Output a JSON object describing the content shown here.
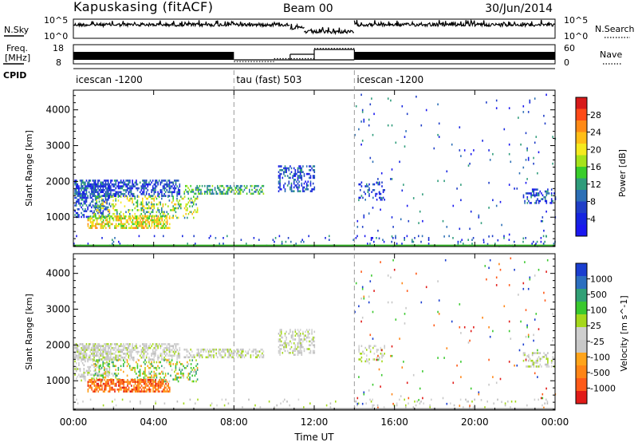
{
  "header": {
    "station": "Kapuskasing (fitACF)",
    "beam": "Beam 00",
    "date": "30/Jun/2014"
  },
  "labels": {
    "nsky": "N.Sky",
    "freq_line1": "Freq.",
    "freq_line2": "[MHz]",
    "cpid": "CPID",
    "nsearch": "N.Search",
    "nave": "Nave"
  },
  "chart_data": [
    {
      "type": "line",
      "name_left": "N.Sky",
      "name_right": "N.Search",
      "yticks_left": [
        "10^5",
        "10^0"
      ],
      "yticks_right": [
        "10^5",
        "10^0"
      ],
      "segments": [
        {
          "x0": 0.0,
          "x1": 10.8,
          "level": "high",
          "style": "noisy"
        },
        {
          "x0": 10.8,
          "x1": 11.5,
          "level": "mid",
          "style": "noisy"
        },
        {
          "x0": 11.5,
          "x1": 14.0,
          "level": "low",
          "style": "noisy"
        },
        {
          "x0": 14.0,
          "x1": 24.0,
          "level": "high",
          "style": "noisy"
        }
      ]
    },
    {
      "type": "line",
      "name_left": "Freq. [MHz]",
      "name_right": "Nave",
      "yticks_left": [
        "18",
        "8"
      ],
      "yticks_right": [
        "60",
        "0"
      ],
      "freq_segments": [
        {
          "x0": 0.0,
          "x1": 8.0,
          "style": "dense"
        },
        {
          "x0": 8.0,
          "x1": 14.0,
          "style": "low"
        },
        {
          "x0": 14.0,
          "x1": 24.0,
          "style": "dense"
        }
      ],
      "nave_segments": [
        {
          "x0": 8.0,
          "x1": 10.0,
          "value": 5
        },
        {
          "x0": 10.0,
          "x1": 12.0,
          "value": 15
        },
        {
          "x0": 12.0,
          "x1": 14.0,
          "value": 50
        }
      ]
    },
    {
      "type": "table",
      "cpid_segments": [
        {
          "x0": 0.0,
          "x1": 8.0,
          "label": "icescan -1200"
        },
        {
          "x0": 8.0,
          "x1": 14.0,
          "label": "tau (fast) 503"
        },
        {
          "x0": 14.0,
          "x1": 24.0,
          "label": "icescan -1200"
        }
      ]
    },
    {
      "type": "heatmap",
      "quantity": "Power",
      "ylabel": "Slant Range [km]",
      "yticks": [
        1000,
        2000,
        3000,
        4000
      ],
      "ylim": [
        180,
        4550
      ],
      "colorbar_label": "Power [dB]",
      "colorbar_ticks": [
        "28",
        "24",
        "20",
        "16",
        "12",
        "8",
        "4"
      ],
      "colorbar_colors": [
        "#d71a1a",
        "#ff4a18",
        "#ff8a16",
        "#ffbe16",
        "#f5ea1e",
        "#a6e31a",
        "#39cd2a",
        "#2f9c7b",
        "#2c6fb6",
        "#1f3ec7",
        "#1524e0",
        "#1a17f0"
      ],
      "blocks": [
        {
          "t0": 0.05,
          "t1": 5.3,
          "r0": 1600,
          "r1": 2050,
          "palette": "power_blue",
          "density": 0.55
        },
        {
          "t0": 0.05,
          "t1": 1.8,
          "r0": 1000,
          "r1": 2000,
          "palette": "power_blue",
          "density": 0.4
        },
        {
          "t0": 1.0,
          "t1": 6.2,
          "r0": 1000,
          "r1": 1600,
          "palette": "power_mix",
          "density": 0.3
        },
        {
          "t0": 0.7,
          "t1": 4.8,
          "r0": 700,
          "r1": 1050,
          "palette": "power_orange",
          "density": 0.6
        },
        {
          "t0": 5.5,
          "t1": 9.5,
          "r0": 1650,
          "r1": 1900,
          "palette": "power_green",
          "density": 0.5
        },
        {
          "t0": 10.2,
          "t1": 12.0,
          "r0": 1750,
          "r1": 2450,
          "palette": "power_blue",
          "density": 0.35
        },
        {
          "t0": 0.0,
          "t1": 24.0,
          "r0": 200,
          "r1": 500,
          "palette": "power_blue",
          "density": 0.05
        },
        {
          "t0": 14.2,
          "t1": 15.5,
          "r0": 1500,
          "r1": 2000,
          "palette": "power_blue",
          "density": 0.25
        },
        {
          "t0": 22.4,
          "t1": 24.0,
          "r0": 1400,
          "r1": 1800,
          "palette": "power_blue",
          "density": 0.35
        },
        {
          "t0": 14.0,
          "t1": 24.0,
          "r0": 200,
          "r1": 4450,
          "palette": "power_blue",
          "density": 0.012
        }
      ],
      "ground_line": {
        "r": 210,
        "color": "#38b52c"
      }
    },
    {
      "type": "heatmap",
      "quantity": "Velocity",
      "ylabel": "Slant Range [km]",
      "yticks": [
        1000,
        2000,
        3000,
        4000
      ],
      "ylim": [
        180,
        4550
      ],
      "colorbar_label": "Velocity [m s^-1]",
      "colorbar_ticks": [
        "1000",
        "500",
        "100",
        "25",
        "-25",
        "-100",
        "-500",
        "-1000"
      ],
      "colorbar_colors": [
        "#1a3ed0",
        "#2c6fc0",
        "#31a076",
        "#3ac92e",
        "#a5d81c",
        "#cfcfcf",
        "#c8c8c8",
        "#ffa41a",
        "#ff8516",
        "#ff5a18",
        "#e11b18"
      ],
      "blocks": [
        {
          "t0": 0.05,
          "t1": 5.3,
          "r0": 1600,
          "r1": 2050,
          "palette": "vel_gray",
          "density": 0.55
        },
        {
          "t0": 0.05,
          "t1": 1.8,
          "r0": 1000,
          "r1": 2000,
          "palette": "vel_gray",
          "density": 0.35
        },
        {
          "t0": 1.0,
          "t1": 6.2,
          "r0": 1000,
          "r1": 1600,
          "palette": "vel_mix",
          "density": 0.3
        },
        {
          "t0": 0.7,
          "t1": 4.8,
          "r0": 700,
          "r1": 1050,
          "palette": "vel_orange",
          "density": 0.65
        },
        {
          "t0": 5.5,
          "t1": 9.5,
          "r0": 1650,
          "r1": 1900,
          "palette": "vel_gray",
          "density": 0.5
        },
        {
          "t0": 10.2,
          "t1": 12.0,
          "r0": 1750,
          "r1": 2450,
          "palette": "vel_gray",
          "density": 0.35
        },
        {
          "t0": 0.0,
          "t1": 24.0,
          "r0": 200,
          "r1": 500,
          "palette": "vel_gray",
          "density": 0.05
        },
        {
          "t0": 14.2,
          "t1": 15.5,
          "r0": 1500,
          "r1": 2000,
          "palette": "vel_gray",
          "density": 0.25
        },
        {
          "t0": 22.4,
          "t1": 24.0,
          "r0": 1400,
          "r1": 1800,
          "palette": "vel_gray",
          "density": 0.35
        },
        {
          "t0": 14.0,
          "t1": 24.0,
          "r0": 200,
          "r1": 4450,
          "palette": "vel_sparse",
          "density": 0.012
        }
      ],
      "ground_line": {
        "r": 210,
        "color": "#8a8a8a"
      }
    }
  ],
  "xaxis": {
    "label": "Time UT",
    "ticks": [
      "00:00",
      "04:00",
      "08:00",
      "12:00",
      "16:00",
      "20:00",
      "00:00"
    ],
    "xlim": [
      0,
      24
    ]
  },
  "dividers": [
    8,
    14
  ],
  "palettes": {
    "power_blue": [
      "#1a17f0",
      "#1f3ec7",
      "#2c6fb6",
      "#2f9c7b",
      "#1524e0"
    ],
    "power_green": [
      "#2f9c7b",
      "#39cd2a",
      "#a6e31a",
      "#2c6fb6"
    ],
    "power_mix": [
      "#2c6fb6",
      "#2f9c7b",
      "#39cd2a",
      "#a6e31a",
      "#ffbe16",
      "#f5ea1e"
    ],
    "power_orange": [
      "#ff8a16",
      "#ffbe16",
      "#f5ea1e",
      "#a6e31a",
      "#39cd2a"
    ],
    "vel_gray": [
      "#cfcfcf",
      "#c8c8c8",
      "#d6d6d6",
      "#bdbdbd",
      "#a5d81c"
    ],
    "vel_mix": [
      "#c8c8c8",
      "#3ac92e",
      "#31a076",
      "#a5d81c",
      "#ffa41a"
    ],
    "vel_orange": [
      "#ff8516",
      "#ff5a18",
      "#ffa41a",
      "#e11b18",
      "#ff8516"
    ],
    "vel_sparse": [
      "#e11b18",
      "#ff5a18",
      "#1a3ed0",
      "#c8c8c8",
      "#3ac92e",
      "#ff8516"
    ]
  }
}
